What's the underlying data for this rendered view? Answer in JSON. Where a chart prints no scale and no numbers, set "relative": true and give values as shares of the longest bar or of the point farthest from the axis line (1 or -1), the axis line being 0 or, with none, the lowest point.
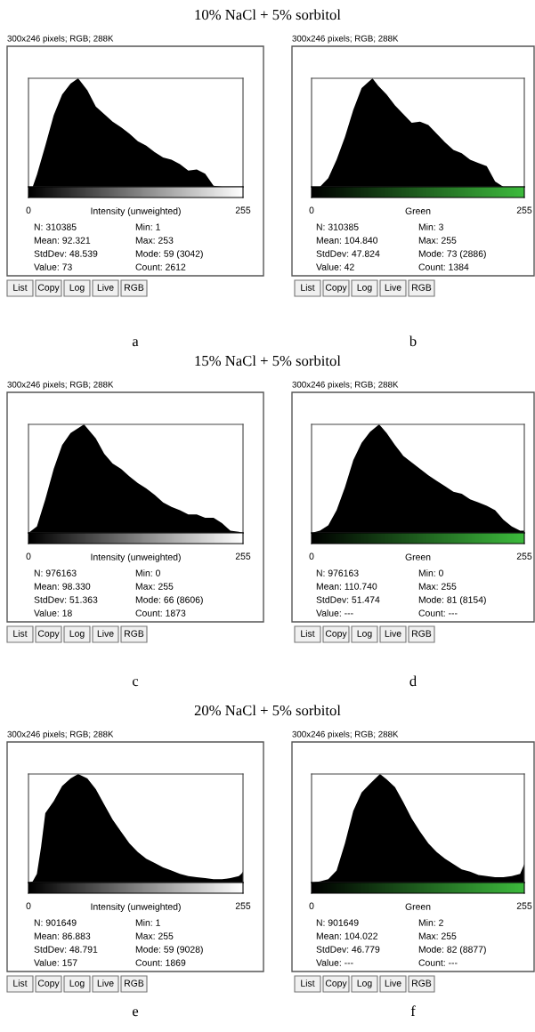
{
  "chart_data": [
    {
      "type": "area",
      "relative": true,
      "title": "10% NaCl + 5% sorbitol",
      "subtitle": "300x246 pixels; RGB; 288K",
      "xlabel": "Intensity (unweighted)",
      "xlim": [
        0,
        255
      ],
      "xticks": [
        0,
        255
      ],
      "grid": false,
      "legend": false,
      "series": [
        {
          "color": "#000000",
          "x": [
            0,
            5,
            10,
            20,
            30,
            40,
            50,
            59,
            70,
            80,
            90,
            100,
            110,
            120,
            130,
            140,
            150,
            160,
            170,
            180,
            190,
            200,
            210,
            220,
            230,
            255
          ],
          "values": [
            0,
            0,
            0.11,
            0.38,
            0.66,
            0.85,
            0.95,
            1.0,
            0.89,
            0.74,
            0.67,
            0.6,
            0.55,
            0.49,
            0.42,
            0.38,
            0.32,
            0.27,
            0.25,
            0.21,
            0.15,
            0.16,
            0.12,
            0.01,
            0,
            0
          ]
        }
      ],
      "annotations": [
        "N: 310385",
        "Mean: 92.321",
        "StdDev: 48.539",
        "Value: 73",
        "Min: 1",
        "Max: 253",
        "Mode: 59 (3042)",
        "Count: 2612",
        "List",
        "Copy",
        "Log",
        "Live",
        "RGB",
        "a"
      ]
    },
    {
      "type": "area",
      "relative": true,
      "subtitle": "300x246 pixels; RGB; 288K",
      "xlabel": "Green",
      "xlim": [
        0,
        255
      ],
      "xticks": [
        0,
        255
      ],
      "grid": false,
      "legend": false,
      "series": [
        {
          "color": "#000000",
          "x": [
            0,
            10,
            20,
            30,
            40,
            50,
            60,
            73,
            80,
            90,
            100,
            110,
            120,
            130,
            140,
            150,
            160,
            170,
            180,
            190,
            200,
            210,
            220,
            230,
            255
          ],
          "values": [
            0,
            0,
            0.08,
            0.25,
            0.46,
            0.71,
            0.91,
            1.0,
            0.93,
            0.85,
            0.75,
            0.67,
            0.59,
            0.6,
            0.57,
            0.49,
            0.41,
            0.34,
            0.31,
            0.25,
            0.22,
            0.19,
            0.05,
            0,
            0
          ]
        }
      ],
      "annotations": [
        "N: 310385",
        "Mean: 104.840",
        "StdDev: 47.824",
        "Value: 42",
        "Min: 3",
        "Max: 255",
        "Mode: 73 (2886)",
        "Count: 1384",
        "List",
        "Copy",
        "Log",
        "Live",
        "RGB",
        "b"
      ]
    },
    {
      "type": "area",
      "relative": true,
      "title": "15% NaCl + 5% sorbitol",
      "subtitle": "300x246 pixels; RGB; 288K",
      "xlabel": "Intensity (unweighted)",
      "xlim": [
        0,
        255
      ],
      "xticks": [
        0,
        255
      ],
      "grid": false,
      "legend": false,
      "series": [
        {
          "color": "#000000",
          "x": [
            0,
            10,
            20,
            30,
            40,
            50,
            66,
            80,
            90,
            100,
            110,
            120,
            130,
            140,
            150,
            160,
            170,
            180,
            190,
            200,
            210,
            220,
            230,
            240,
            250,
            255
          ],
          "values": [
            0,
            0.06,
            0.31,
            0.59,
            0.81,
            0.92,
            1.0,
            0.87,
            0.73,
            0.64,
            0.59,
            0.52,
            0.46,
            0.41,
            0.35,
            0.28,
            0.24,
            0.21,
            0.17,
            0.17,
            0.14,
            0.14,
            0.09,
            0.02,
            0.01,
            0
          ]
        }
      ],
      "annotations": [
        "N: 976163",
        "Mean: 98.330",
        "StdDev: 51.363",
        "Value: 18",
        "Min: 0",
        "Max: 255",
        "Mode: 66 (8606)",
        "Count: 1873",
        "List",
        "Copy",
        "Log",
        "Live",
        "RGB",
        "c"
      ]
    },
    {
      "type": "area",
      "relative": true,
      "subtitle": "300x246 pixels; RGB; 288K",
      "xlabel": "Green",
      "xlim": [
        0,
        255
      ],
      "xticks": [
        0,
        255
      ],
      "grid": false,
      "legend": false,
      "series": [
        {
          "color": "#000000",
          "x": [
            0,
            10,
            20,
            30,
            40,
            50,
            60,
            70,
            81,
            90,
            100,
            110,
            120,
            130,
            140,
            150,
            160,
            170,
            180,
            190,
            200,
            210,
            220,
            230,
            240,
            250,
            255
          ],
          "values": [
            0,
            0.02,
            0.07,
            0.21,
            0.42,
            0.67,
            0.83,
            0.93,
            1.0,
            0.92,
            0.81,
            0.71,
            0.65,
            0.59,
            0.53,
            0.48,
            0.43,
            0.38,
            0.36,
            0.31,
            0.28,
            0.25,
            0.21,
            0.12,
            0.06,
            0.02,
            0.02
          ]
        }
      ],
      "annotations": [
        "N: 976163",
        "Mean: 110.740",
        "StdDev: 51.474",
        "Value: ---",
        "Min: 0",
        "Max: 255",
        "Mode: 81 (8154)",
        "Count: ---",
        "List",
        "Copy",
        "Log",
        "Live",
        "RGB",
        "d"
      ]
    },
    {
      "type": "area",
      "relative": true,
      "title": "20% NaCl + 5% sorbitol",
      "subtitle": "300x246 pixels; RGB; 288K",
      "xlabel": "Intensity (unweighted)",
      "xlim": [
        0,
        255
      ],
      "xticks": [
        0,
        255
      ],
      "grid": false,
      "legend": false,
      "series": [
        {
          "color": "#000000",
          "x": [
            0,
            5,
            10,
            15,
            20,
            30,
            40,
            50,
            59,
            70,
            80,
            90,
            100,
            110,
            120,
            130,
            140,
            150,
            160,
            170,
            180,
            190,
            200,
            210,
            220,
            230,
            240,
            250,
            253,
            255
          ],
          "values": [
            0,
            0.01,
            0.08,
            0.33,
            0.64,
            0.75,
            0.89,
            0.96,
            1.0,
            0.96,
            0.86,
            0.72,
            0.58,
            0.47,
            0.36,
            0.28,
            0.22,
            0.18,
            0.14,
            0.11,
            0.08,
            0.06,
            0.05,
            0.04,
            0.03,
            0.03,
            0.04,
            0.06,
            0.08,
            0.1
          ]
        }
      ],
      "annotations": [
        "N: 901649",
        "Mean: 86.883",
        "StdDev: 48.791",
        "Value: 157",
        "Min: 1",
        "Max: 255",
        "Mode: 59 (9028)",
        "Count: 1869",
        "List",
        "Copy",
        "Log",
        "Live",
        "RGB",
        "e"
      ]
    },
    {
      "type": "area",
      "relative": true,
      "subtitle": "300x246 pixels; RGB; 288K",
      "xlabel": "Green",
      "xlim": [
        0,
        255
      ],
      "xticks": [
        0,
        255
      ],
      "grid": false,
      "legend": false,
      "series": [
        {
          "color": "#000000",
          "x": [
            0,
            10,
            20,
            30,
            40,
            50,
            60,
            70,
            82,
            90,
            100,
            110,
            120,
            130,
            140,
            150,
            160,
            170,
            180,
            190,
            200,
            210,
            220,
            230,
            240,
            250,
            255
          ],
          "values": [
            0,
            0.01,
            0.03,
            0.11,
            0.36,
            0.66,
            0.83,
            0.91,
            1.0,
            0.95,
            0.88,
            0.74,
            0.59,
            0.47,
            0.36,
            0.28,
            0.22,
            0.17,
            0.12,
            0.1,
            0.07,
            0.06,
            0.05,
            0.05,
            0.06,
            0.08,
            0.17
          ]
        }
      ],
      "annotations": [
        "N: 901649",
        "Mean: 104.022",
        "StdDev: 46.779",
        "Value: ---",
        "Min: 2",
        "Max: 255",
        "Mode: 82 (8877)",
        "Count: ---",
        "List",
        "Copy",
        "Log",
        "Live",
        "RGB",
        "f"
      ]
    }
  ]
}
